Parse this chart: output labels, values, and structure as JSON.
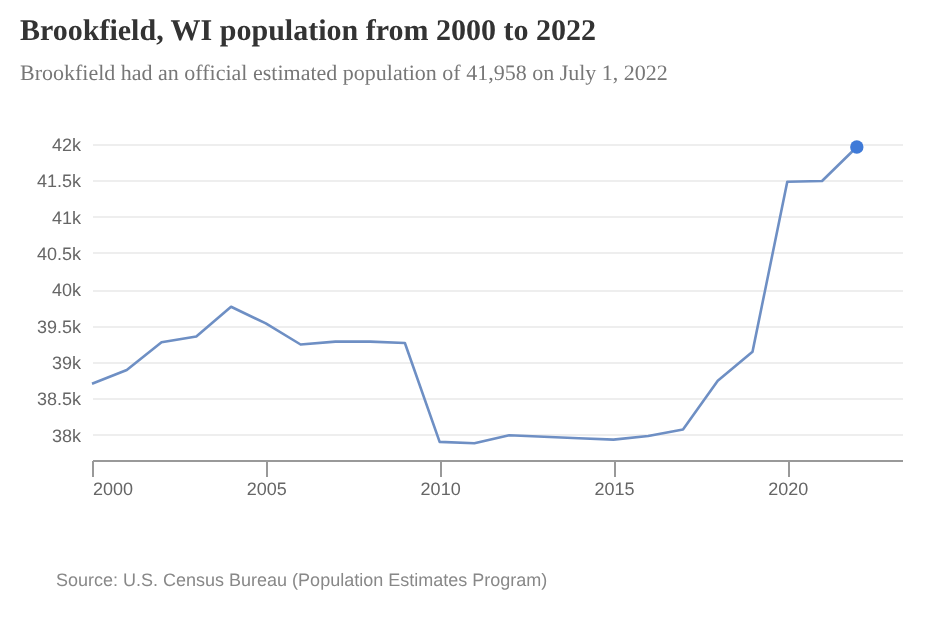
{
  "chart_data": {
    "type": "line",
    "title": "Brookfield, WI population from 2000 to 2022",
    "subtitle": "Brookfield had an official estimated population of 41,958 on July 1, 2022",
    "annotations": [
      "Source: U.S. Census Bureau (Population Estimates Program)"
    ],
    "series": [
      {
        "color": "#6e8fc4",
        "marker": "none",
        "x": [
          2000,
          2001,
          2002,
          2003,
          2004,
          2005,
          2006,
          2007,
          2008,
          2009,
          2010,
          2011,
          2012,
          2013,
          2014,
          2015,
          2016,
          2017,
          2018,
          2019,
          2020,
          2021,
          2022
        ],
        "values": [
          38700,
          38890,
          39270,
          39350,
          39760,
          39530,
          39240,
          39280,
          39280,
          39260,
          37900,
          37880,
          37990,
          37970,
          37950,
          37930,
          37980,
          38070,
          38740,
          39140,
          41480,
          41490,
          41958
        ]
      },
      {
        "type": "scatter",
        "color": "#3f7ad8",
        "marker": "circle",
        "x": [
          2022
        ],
        "values": [
          41958
        ]
      }
    ],
    "xlim": [
      2000,
      2023.3
    ],
    "xticks": [
      2000,
      2005,
      2010,
      2015,
      2020
    ],
    "ylim": [
      37650,
      42000
    ],
    "yticks": [
      {
        "value": 38000,
        "label": "38k"
      },
      {
        "value": 38500,
        "label": "38.5k"
      },
      {
        "value": 39000,
        "label": "39k"
      },
      {
        "value": 39500,
        "label": "39.5k"
      },
      {
        "value": 40000,
        "label": "40k"
      },
      {
        "value": 40500,
        "label": "40.5k"
      },
      {
        "value": 41000,
        "label": "41k"
      },
      {
        "value": 41500,
        "label": "41.5k"
      },
      {
        "value": 42000,
        "label": "42k"
      }
    ],
    "grid": "y"
  }
}
